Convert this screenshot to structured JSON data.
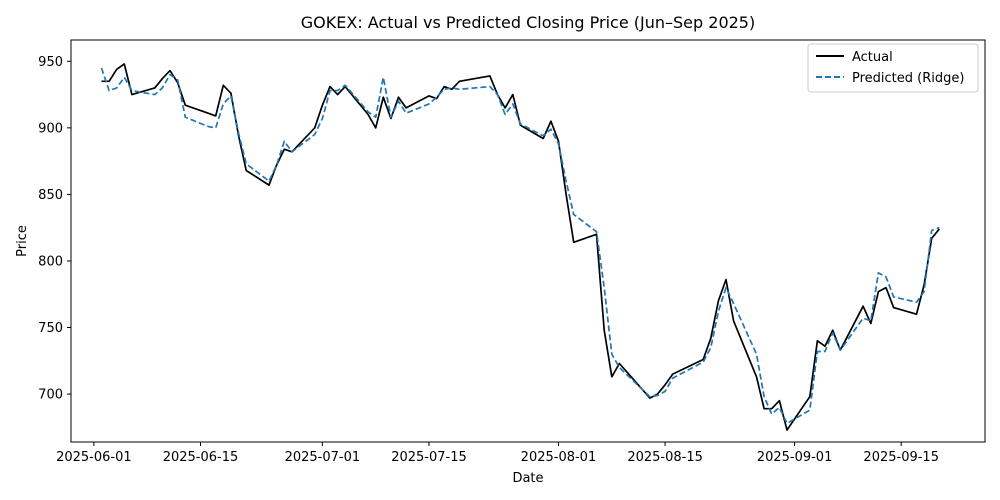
{
  "chart_data": {
    "type": "line",
    "title": "GOKEX: Actual vs Predicted Closing Price (Jun–Sep 2025)",
    "xlabel": "Date",
    "ylabel": "Price",
    "xlim": [
      "2025-05-29",
      "2025-09-26"
    ],
    "ylim": [
      664,
      966
    ],
    "x_ticks": [
      "2025-06-01",
      "2025-06-15",
      "2025-07-01",
      "2025-07-15",
      "2025-08-01",
      "2025-08-15",
      "2025-09-01",
      "2025-09-15"
    ],
    "y_ticks": [
      700,
      750,
      800,
      850,
      900,
      950
    ],
    "grid": false,
    "legend_position": "top-right",
    "series": [
      {
        "name": "Actual",
        "color": "#000000",
        "style": "solid",
        "points": [
          [
            "2025-06-02",
            935
          ],
          [
            "2025-06-03",
            935
          ],
          [
            "2025-06-04",
            944
          ],
          [
            "2025-06-05",
            948
          ],
          [
            "2025-06-06",
            925
          ],
          [
            "2025-06-09",
            930
          ],
          [
            "2025-06-10",
            937
          ],
          [
            "2025-06-11",
            943
          ],
          [
            "2025-06-12",
            934
          ],
          [
            "2025-06-13",
            917
          ],
          [
            "2025-06-16",
            911
          ],
          [
            "2025-06-17",
            909
          ],
          [
            "2025-06-18",
            932
          ],
          [
            "2025-06-19",
            926
          ],
          [
            "2025-06-20",
            894
          ],
          [
            "2025-06-21",
            868
          ],
          [
            "2025-06-24",
            857
          ],
          [
            "2025-06-25",
            872
          ],
          [
            "2025-06-26",
            884
          ],
          [
            "2025-06-27",
            882
          ],
          [
            "2025-06-30",
            900
          ],
          [
            "2025-07-01",
            917
          ],
          [
            "2025-07-02",
            931
          ],
          [
            "2025-07-03",
            925
          ],
          [
            "2025-07-04",
            931
          ],
          [
            "2025-07-07",
            910
          ],
          [
            "2025-07-08",
            900
          ],
          [
            "2025-07-09",
            923
          ],
          [
            "2025-07-10",
            907
          ],
          [
            "2025-07-11",
            923
          ],
          [
            "2025-07-12",
            915
          ],
          [
            "2025-07-15",
            924
          ],
          [
            "2025-07-16",
            922
          ],
          [
            "2025-07-17",
            931
          ],
          [
            "2025-07-18",
            929
          ],
          [
            "2025-07-19",
            935
          ],
          [
            "2025-07-23",
            939
          ],
          [
            "2025-07-24",
            925
          ],
          [
            "2025-07-25",
            915
          ],
          [
            "2025-07-26",
            925
          ],
          [
            "2025-07-27",
            902
          ],
          [
            "2025-07-30",
            892
          ],
          [
            "2025-07-31",
            905
          ],
          [
            "2025-08-01",
            890
          ],
          [
            "2025-08-02",
            850
          ],
          [
            "2025-08-03",
            814
          ],
          [
            "2025-08-06",
            820
          ],
          [
            "2025-08-07",
            748
          ],
          [
            "2025-08-08",
            713
          ],
          [
            "2025-08-09",
            723
          ],
          [
            "2025-08-13",
            697
          ],
          [
            "2025-08-14",
            700
          ],
          [
            "2025-08-15",
            707
          ],
          [
            "2025-08-16",
            715
          ],
          [
            "2025-08-20",
            726
          ],
          [
            "2025-08-21",
            742
          ],
          [
            "2025-08-22",
            770
          ],
          [
            "2025-08-23",
            786
          ],
          [
            "2025-08-24",
            755
          ],
          [
            "2025-08-27",
            713
          ],
          [
            "2025-08-28",
            689
          ],
          [
            "2025-08-29",
            689
          ],
          [
            "2025-08-30",
            695
          ],
          [
            "2025-08-31",
            673
          ],
          [
            "2025-09-03",
            698
          ],
          [
            "2025-09-04",
            740
          ],
          [
            "2025-09-05",
            736
          ],
          [
            "2025-09-06",
            748
          ],
          [
            "2025-09-07",
            733
          ],
          [
            "2025-09-10",
            766
          ],
          [
            "2025-09-11",
            753
          ],
          [
            "2025-09-12",
            777
          ],
          [
            "2025-09-13",
            780
          ],
          [
            "2025-09-14",
            765
          ],
          [
            "2025-09-17",
            760
          ],
          [
            "2025-09-18",
            782
          ],
          [
            "2025-09-19",
            817
          ],
          [
            "2025-09-20",
            824
          ]
        ]
      },
      {
        "name": "Predicted (Ridge)",
        "color": "#1f77b4",
        "style": "dashed",
        "points": [
          [
            "2025-06-02",
            945
          ],
          [
            "2025-06-03",
            928
          ],
          [
            "2025-06-04",
            930
          ],
          [
            "2025-06-05",
            938
          ],
          [
            "2025-06-06",
            928
          ],
          [
            "2025-06-09",
            925
          ],
          [
            "2025-06-10",
            930
          ],
          [
            "2025-06-11",
            940
          ],
          [
            "2025-06-12",
            936
          ],
          [
            "2025-06-13",
            908
          ],
          [
            "2025-06-16",
            901
          ],
          [
            "2025-06-17",
            900
          ],
          [
            "2025-06-18",
            918
          ],
          [
            "2025-06-19",
            924
          ],
          [
            "2025-06-20",
            896
          ],
          [
            "2025-06-21",
            873
          ],
          [
            "2025-06-24",
            860
          ],
          [
            "2025-06-25",
            872
          ],
          [
            "2025-06-26",
            890
          ],
          [
            "2025-06-27",
            882
          ],
          [
            "2025-06-30",
            895
          ],
          [
            "2025-07-01",
            907
          ],
          [
            "2025-07-02",
            928
          ],
          [
            "2025-07-03",
            928
          ],
          [
            "2025-07-04",
            932
          ],
          [
            "2025-07-07",
            912
          ],
          [
            "2025-07-08",
            908
          ],
          [
            "2025-07-09",
            938
          ],
          [
            "2025-07-10",
            908
          ],
          [
            "2025-07-11",
            920
          ],
          [
            "2025-07-12",
            911
          ],
          [
            "2025-07-15",
            918
          ],
          [
            "2025-07-16",
            923
          ],
          [
            "2025-07-17",
            929
          ],
          [
            "2025-07-18",
            930
          ],
          [
            "2025-07-19",
            929
          ],
          [
            "2025-07-23",
            931
          ],
          [
            "2025-07-24",
            925
          ],
          [
            "2025-07-25",
            910
          ],
          [
            "2025-07-26",
            918
          ],
          [
            "2025-07-27",
            903
          ],
          [
            "2025-07-30",
            894
          ],
          [
            "2025-07-31",
            899
          ],
          [
            "2025-08-01",
            888
          ],
          [
            "2025-08-02",
            860
          ],
          [
            "2025-08-03",
            835
          ],
          [
            "2025-08-06",
            822
          ],
          [
            "2025-08-07",
            780
          ],
          [
            "2025-08-08",
            730
          ],
          [
            "2025-08-09",
            720
          ],
          [
            "2025-08-13",
            698
          ],
          [
            "2025-08-14",
            699
          ],
          [
            "2025-08-15",
            702
          ],
          [
            "2025-08-16",
            712
          ],
          [
            "2025-08-20",
            724
          ],
          [
            "2025-08-21",
            735
          ],
          [
            "2025-08-22",
            762
          ],
          [
            "2025-08-23",
            780
          ],
          [
            "2025-08-24",
            768
          ],
          [
            "2025-08-27",
            730
          ],
          [
            "2025-08-28",
            698
          ],
          [
            "2025-08-29",
            685
          ],
          [
            "2025-08-30",
            690
          ],
          [
            "2025-08-31",
            678
          ],
          [
            "2025-09-03",
            688
          ],
          [
            "2025-09-04",
            732
          ],
          [
            "2025-09-05",
            732
          ],
          [
            "2025-09-06",
            746
          ],
          [
            "2025-09-07",
            733
          ],
          [
            "2025-09-10",
            757
          ],
          [
            "2025-09-11",
            755
          ],
          [
            "2025-09-12",
            791
          ],
          [
            "2025-09-13",
            788
          ],
          [
            "2025-09-14",
            773
          ],
          [
            "2025-09-17",
            769
          ],
          [
            "2025-09-18",
            777
          ],
          [
            "2025-09-19",
            823
          ],
          [
            "2025-09-20",
            825
          ]
        ]
      }
    ]
  }
}
